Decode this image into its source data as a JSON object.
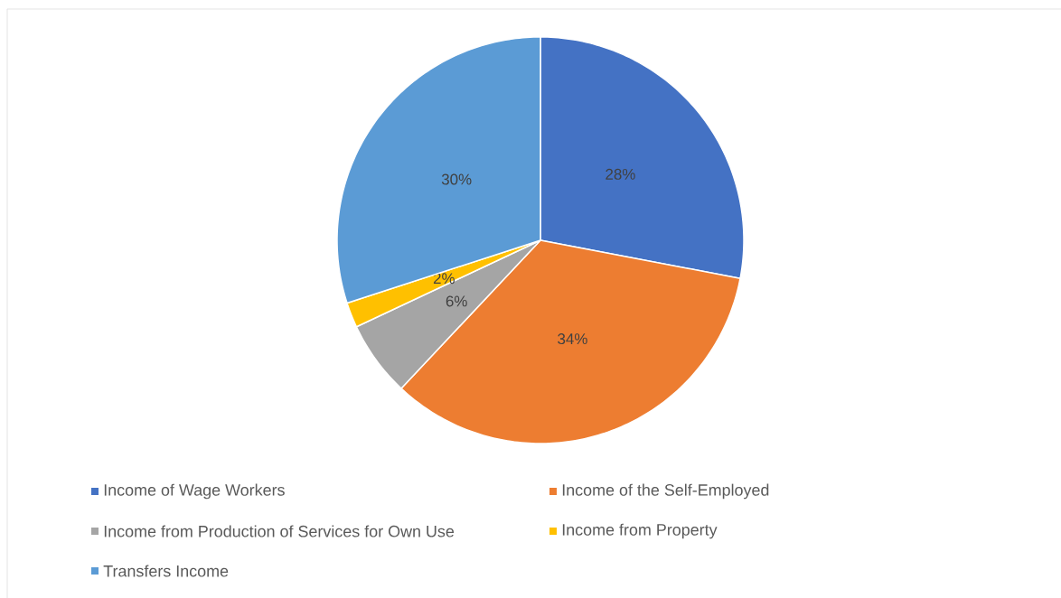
{
  "chart_data": {
    "type": "pie",
    "categories": [
      "Income of Wage Workers",
      "Income of the Self-Employed",
      "Income from Production of Services for Own Use",
      "Income from Property",
      "Transfers Income"
    ],
    "values": [
      28,
      34,
      6,
      2,
      30
    ],
    "value_labels": [
      "28%",
      "34%",
      "6%",
      "2%",
      "30%"
    ],
    "colors": [
      "#4472c4",
      "#ed7d31",
      "#a5a5a5",
      "#ffc000",
      "#5b9bd5"
    ],
    "legend": "bottom"
  }
}
